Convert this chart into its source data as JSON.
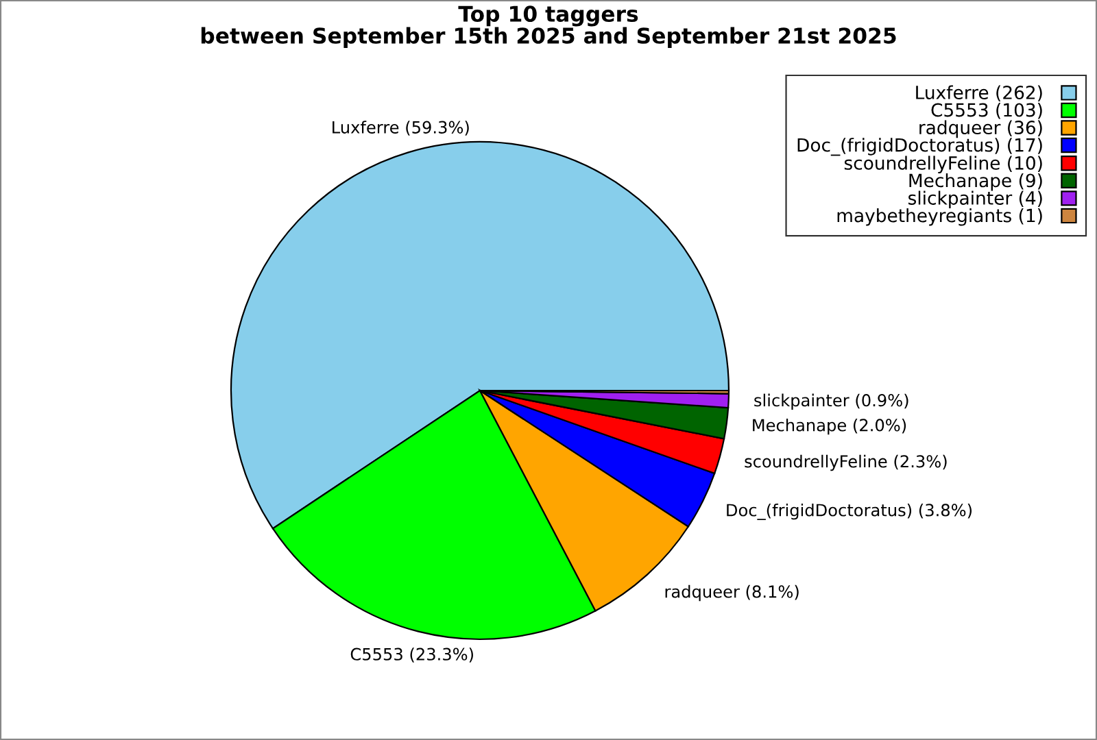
{
  "chart_data": {
    "type": "pie",
    "title": "Top 10 taggers",
    "subtitle": "between September 15th 2025 and September 21st 2025",
    "categories": [
      "Luxferre (262)",
      "C5553 (103)",
      "radqueer (36)",
      "Doc_(frigidDoctoratus) (17)",
      "scoundrellyFeline (10)",
      "Mechanape (9)",
      "slickpainter (4)",
      "maybetheyregiants (1)"
    ],
    "values": [
      59.3,
      23.3,
      8.1,
      3.8,
      2.3,
      2.0,
      0.9,
      0.2
    ],
    "colors": [
      "#87ceeb",
      "#00ff00",
      "#ffa500",
      "#0000ff",
      "#ff0000",
      "#006400",
      "#a020f0",
      "#cd853f"
    ],
    "value_labels": [
      "Luxferre (59.3%)",
      "C5553 (23.3%)",
      "radqueer (8.1%)",
      "Doc_(frigidDoctoratus) (3.8%)",
      "scoundrellyFeline (2.3%)",
      "Mechanape (2.0%)",
      "slickpainter (0.9%)",
      null
    ],
    "legend": "top right"
  }
}
